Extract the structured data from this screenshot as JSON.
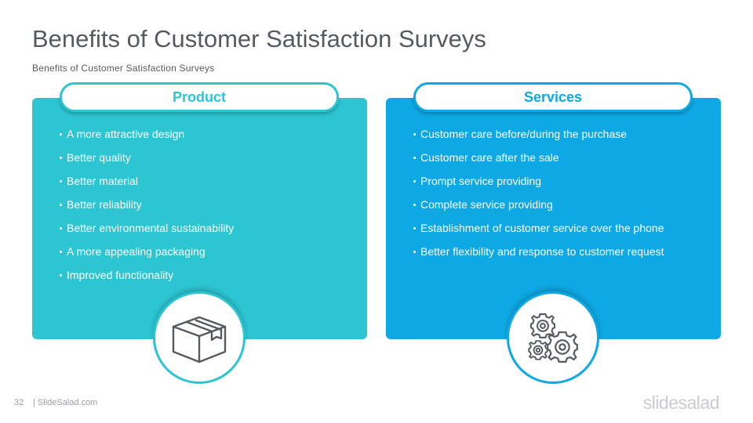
{
  "slide": {
    "title": "Benefits of Customer Satisfaction Surveys",
    "subtitle": "Benefits of Customer Satisfaction Surveys",
    "page_number": "32",
    "footer_site": "| SlideSalad.com",
    "brand": "slidesalad"
  },
  "product": {
    "heading": "Product",
    "icon": "box-icon",
    "color": "#2cc5d2",
    "items": [
      "A more attractive design",
      "Better quality",
      "Better material",
      "Better reliability",
      "Better environmental sustainability",
      "A more appealing packaging",
      "Improved functionality"
    ]
  },
  "services": {
    "heading": "Services",
    "icon": "gears-icon",
    "color": "#0ea8e4",
    "items": [
      "Customer care before/during the purchase",
      "Customer care after the sale",
      "Prompt service providing",
      "Complete service providing",
      "Establishment of customer service over the phone",
      "Better flexibility and response to customer request"
    ]
  }
}
